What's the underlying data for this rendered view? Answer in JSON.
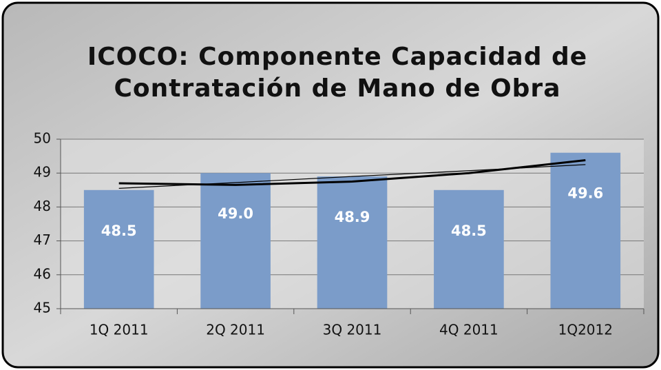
{
  "chart_data": {
    "type": "bar",
    "title": [
      "ICOCO: Componente Capacidad de",
      "Contratación de Mano de Obra"
    ],
    "categories": [
      "1Q 2011",
      "2Q 2011",
      "3Q 2011",
      "4Q 2011",
      "1Q2012"
    ],
    "values": [
      48.5,
      49.0,
      48.9,
      48.5,
      49.6
    ],
    "value_labels": [
      "48.5",
      "49.0",
      "48.9",
      "48.5",
      "49.6"
    ],
    "color": "#7b9cc9",
    "trendlines": [
      {
        "color": "#000000",
        "width": 3,
        "values": [
          48.7,
          48.65,
          48.75,
          49.0,
          49.38
        ]
      },
      {
        "color": "#000000",
        "width": 1.2,
        "values": [
          48.55,
          48.72,
          48.9,
          49.07,
          49.25
        ]
      }
    ],
    "ylim": [
      45,
      50
    ],
    "yticks": [
      45,
      46,
      47,
      48,
      49,
      50
    ],
    "grid": true
  }
}
